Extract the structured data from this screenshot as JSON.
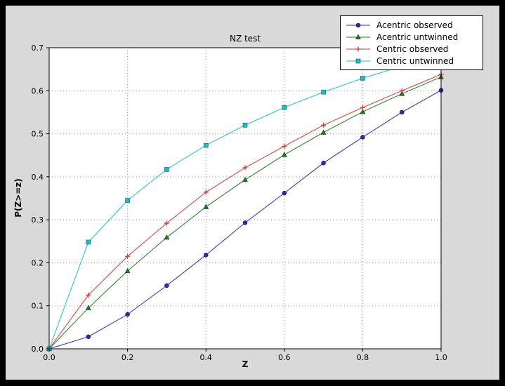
{
  "window": {
    "background": "#000000",
    "figure_background": "#d9d9d9",
    "axes_background": "#ffffff",
    "grid_color": "#999999",
    "frame_color": "#000000"
  },
  "chart_data": {
    "type": "line",
    "title": "NZ test",
    "xlabel": "Z",
    "ylabel": "P(Z>=z)",
    "xlim": [
      0.0,
      1.0
    ],
    "ylim": [
      0.0,
      0.7
    ],
    "xticks": [
      0.0,
      0.2,
      0.4,
      0.6,
      0.8,
      1.0
    ],
    "xtick_labels": [
      "0.0",
      "0.2",
      "0.4",
      "0.6",
      "0.8",
      "1.0"
    ],
    "yticks": [
      0.0,
      0.1,
      0.2,
      0.3,
      0.4,
      0.5,
      0.6,
      0.7
    ],
    "ytick_labels": [
      "0.0",
      "0.1",
      "0.2",
      "0.3",
      "0.4",
      "0.5",
      "0.6",
      "0.7"
    ],
    "grid": true,
    "legend_position": "upper right",
    "x": [
      0.0,
      0.1,
      0.2,
      0.3,
      0.4,
      0.5,
      0.6,
      0.7,
      0.8,
      0.9,
      1.0
    ],
    "series": [
      {
        "name": "Acentric observed",
        "color": "#2828c8",
        "marker": "circle",
        "values": [
          0.0,
          0.028,
          0.08,
          0.147,
          0.218,
          0.293,
          0.362,
          0.432,
          0.492,
          0.55,
          0.601
        ]
      },
      {
        "name": "Acentric untwinned",
        "color": "#1e7d1e",
        "marker": "triangle",
        "values": [
          0.0,
          0.095,
          0.181,
          0.259,
          0.33,
          0.393,
          0.451,
          0.503,
          0.551,
          0.593,
          0.632
        ]
      },
      {
        "name": "Centric observed",
        "color": "#e03232",
        "marker": "plus",
        "values": [
          0.0,
          0.125,
          0.215,
          0.292,
          0.364,
          0.421,
          0.471,
          0.52,
          0.561,
          0.6,
          0.638
        ]
      },
      {
        "name": "Centric untwinned",
        "color": "#17c2ca",
        "marker": "square",
        "values": [
          0.0,
          0.248,
          0.345,
          0.417,
          0.473,
          0.52,
          0.561,
          0.597,
          0.629,
          0.657,
          0.683
        ]
      }
    ]
  }
}
